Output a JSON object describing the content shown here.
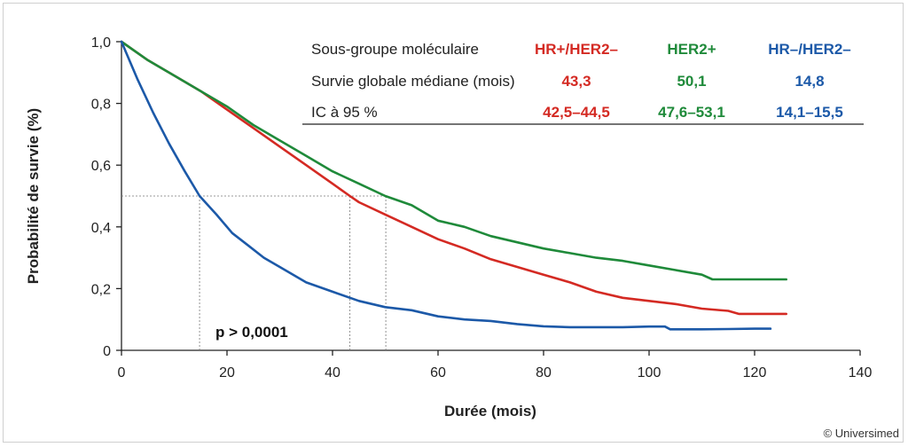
{
  "chart_data": {
    "type": "line",
    "xlabel": "Durée (mois)",
    "ylabel": "Probabilité de survie (%)",
    "xlim": [
      0,
      140
    ],
    "ylim": [
      0,
      1.0
    ],
    "x_ticks": [
      "0",
      "20",
      "40",
      "60",
      "80",
      "100",
      "120",
      "140"
    ],
    "y_ticks": [
      "0",
      "0,2",
      "0,4",
      "0,6",
      "0,8",
      "1,0"
    ],
    "annotation": "p > 0,0001",
    "median_reference": {
      "y": 0.5,
      "x_values": [
        14.8,
        43.3,
        50.1
      ]
    },
    "table": {
      "headers": [
        "Sous-groupe moléculaire",
        "Survie globale médiane (mois)",
        "IC à 95 %"
      ],
      "columns": [
        {
          "name": "HR+/HER2–",
          "median": "43,3",
          "ci": "42,5–44,5",
          "color": "#d42a23"
        },
        {
          "name": "HER2+",
          "median": "50,1",
          "ci": "47,6–53,1",
          "color": "#1f8a3a"
        },
        {
          "name": "HR–/HER2–",
          "median": "14,8",
          "ci": "14,1–15,5",
          "color": "#1c59a8"
        }
      ]
    },
    "series": [
      {
        "name": "HR+/HER2–",
        "color": "#d42a23",
        "x": [
          0,
          5,
          10,
          15,
          20,
          25,
          30,
          35,
          40,
          43.3,
          45,
          50,
          55,
          60,
          65,
          70,
          75,
          80,
          85,
          90,
          95,
          100,
          105,
          110,
          115,
          117,
          120,
          126
        ],
        "y": [
          1.0,
          0.94,
          0.89,
          0.84,
          0.78,
          0.72,
          0.66,
          0.6,
          0.54,
          0.5,
          0.48,
          0.44,
          0.4,
          0.36,
          0.33,
          0.295,
          0.27,
          0.245,
          0.22,
          0.19,
          0.17,
          0.16,
          0.15,
          0.135,
          0.128,
          0.118,
          0.118,
          0.118
        ]
      },
      {
        "name": "HER2+",
        "color": "#1f8a3a",
        "x": [
          0,
          5,
          10,
          15,
          20,
          25,
          30,
          35,
          40,
          45,
          50,
          55,
          60,
          65,
          70,
          75,
          80,
          85,
          90,
          95,
          100,
          105,
          110,
          112,
          120,
          126
        ],
        "y": [
          1.0,
          0.94,
          0.89,
          0.84,
          0.79,
          0.73,
          0.68,
          0.63,
          0.58,
          0.54,
          0.5,
          0.47,
          0.42,
          0.4,
          0.37,
          0.35,
          0.33,
          0.315,
          0.3,
          0.29,
          0.275,
          0.26,
          0.245,
          0.23,
          0.23,
          0.23
        ]
      },
      {
        "name": "HR–/HER2–",
        "color": "#1c59a8",
        "x": [
          0,
          3,
          6,
          9,
          12,
          14.8,
          18,
          21,
          24,
          27,
          30,
          35,
          40,
          45,
          50,
          55,
          60,
          65,
          70,
          75,
          80,
          85,
          90,
          95,
          100,
          103,
          104,
          110,
          115,
          120,
          123
        ],
        "y": [
          1.0,
          0.88,
          0.77,
          0.67,
          0.58,
          0.5,
          0.44,
          0.38,
          0.34,
          0.3,
          0.27,
          0.22,
          0.19,
          0.16,
          0.14,
          0.13,
          0.11,
          0.1,
          0.095,
          0.085,
          0.078,
          0.075,
          0.075,
          0.075,
          0.077,
          0.077,
          0.068,
          0.068,
          0.069,
          0.07,
          0.07
        ]
      }
    ]
  },
  "copyright": "© Universimed"
}
